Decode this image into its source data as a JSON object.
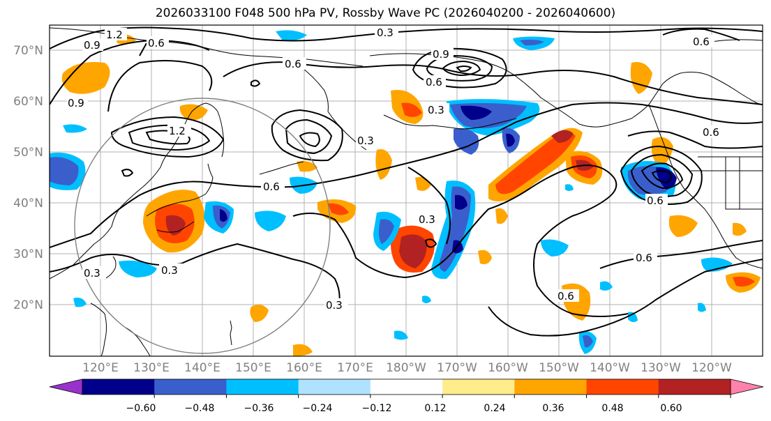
{
  "title": "2026033100 F048 500 hPa PV, Rossby Wave PC (2026040200 - 2026040600)",
  "map": {
    "lat_labels": [
      "70°N",
      "60°N",
      "50°N",
      "40°N",
      "30°N",
      "20°N"
    ],
    "lon_labels": [
      "120°E",
      "130°E",
      "140°E",
      "150°E",
      "160°E",
      "170°E",
      "180°W",
      "170°W",
      "160°W",
      "150°W",
      "140°W",
      "130°W",
      "120°W"
    ],
    "contour_labels": [
      "0.3",
      "0.6",
      "0.9",
      "1.2",
      "0.3",
      "0.6",
      "0.9",
      "0.6",
      "0.3",
      "0.6",
      "0.3",
      "0.6",
      "0.6",
      "0.6",
      "0.3",
      "0.6",
      "0.9",
      "1.2",
      "0.6",
      "0.3",
      "0.3"
    ]
  },
  "colorbar": {
    "ticks": [
      "−0.60",
      "−0.48",
      "−0.36",
      "−0.24",
      "−0.12",
      "0.12",
      "0.24",
      "0.36",
      "0.48",
      "0.60"
    ],
    "colors": [
      "#9932cc",
      "#00008b",
      "#3a5fcd",
      "#00bfff",
      "#b0e2ff",
      "#ffffff",
      "#ffec8b",
      "#ffa500",
      "#ff4500",
      "#b22222",
      "#ff82ab"
    ]
  }
}
